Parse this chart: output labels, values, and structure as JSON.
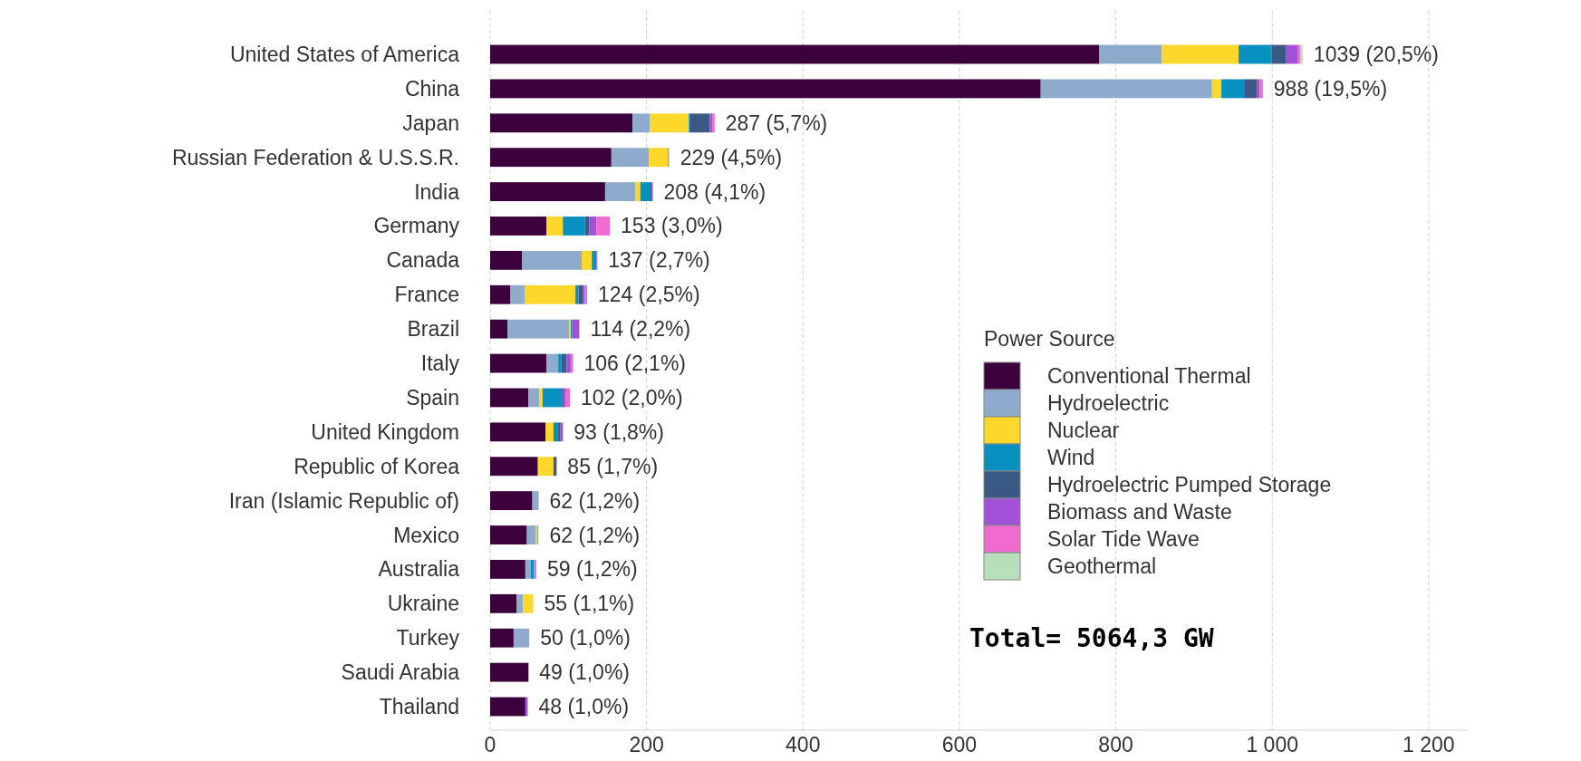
{
  "chart_data": {
    "type": "bar",
    "orientation": "horizontal",
    "stacked": true,
    "categories": [
      "United States of America",
      "China",
      "Japan",
      "Russian Federation & U.S.S.R.",
      "India",
      "Germany",
      "Canada",
      "France",
      "Brazil",
      "Italy",
      "Spain",
      "United Kingdom",
      "Republic of Korea",
      "Iran (Islamic Republic of)",
      "Mexico",
      "Australia",
      "Ukraine",
      "Turkey",
      "Saudi Arabia",
      "Thailand"
    ],
    "legend_title": "Power Source",
    "legend": "bottom right",
    "grid": "x",
    "xlim": [
      0,
      1250
    ],
    "xticks": [
      0,
      200,
      400,
      600,
      800,
      {
        "value": 1000,
        "label": "1 000"
      },
      {
        "value": 1200,
        "label": "1 200"
      }
    ],
    "series": [
      {
        "name": "Conventional Thermal",
        "color": "#3c003c",
        "values": [
          779,
          704,
          182,
          155,
          147,
          72,
          41,
          26,
          22,
          72,
          49,
          71,
          61,
          54,
          47,
          45,
          34,
          30,
          49,
          45
        ]
      },
      {
        "name": "Hydroelectric",
        "color": "#8eaacc",
        "values": [
          80,
          219,
          22,
          48,
          39,
          0,
          76,
          18,
          79,
          15,
          14,
          0,
          0,
          8,
          11,
          7,
          8,
          20,
          0,
          0
        ]
      },
      {
        "name": "Nuclear",
        "color": "#fdd82b",
        "values": [
          98,
          12,
          50,
          24,
          6,
          21,
          13,
          65,
          2,
          0,
          4,
          10,
          20,
          0,
          2,
          0,
          13,
          0,
          0,
          0
        ]
      },
      {
        "name": "Wind",
        "color": "#0891c0",
        "values": [
          42,
          30,
          2,
          0,
          13,
          28,
          6,
          4,
          2,
          4,
          25,
          6,
          0,
          0,
          1,
          4,
          0,
          0,
          0,
          0
        ]
      },
      {
        "name": "Hydroelectric Pumped Storage",
        "color": "#3a5a85",
        "values": [
          19,
          15,
          25,
          0,
          2,
          6,
          0,
          6,
          0,
          7,
          2,
          3,
          4,
          0,
          0,
          0,
          0,
          0,
          0,
          0
        ]
      },
      {
        "name": "Biomass and Waste",
        "color": "#a350d8",
        "values": [
          15,
          4,
          3,
          1,
          1,
          9,
          1,
          2,
          9,
          5,
          3,
          3,
          0,
          0,
          0,
          0,
          0,
          0,
          0,
          3
        ]
      },
      {
        "name": "Solar Tide Wave",
        "color": "#f06ad0",
        "values": [
          3,
          4,
          3,
          0,
          0,
          17,
          0,
          3,
          0,
          3,
          5,
          0,
          0,
          0,
          0,
          3,
          0,
          0,
          0,
          0
        ]
      },
      {
        "name": "Geothermal",
        "color": "#b7dfb9",
        "values": [
          3,
          0,
          0,
          1,
          0,
          0,
          0,
          0,
          0,
          0,
          0,
          0,
          0,
          0,
          1,
          0,
          0,
          0,
          0,
          0
        ]
      }
    ],
    "totals": [
      "1039 (20,5%)",
      "988 (19,5%)",
      "287 (5,7%)",
      "229 (4,5%)",
      "208 (4,1%)",
      "153 (3,0%)",
      "137 (2,7%)",
      "124 (2,5%)",
      "114 (2,2%)",
      "106 (2,1%)",
      "102 (2,0%)",
      "93 (1,8%)",
      "85 (1,7%)",
      "62 (1,2%)",
      "62 (1,2%)",
      "59 (1,2%)",
      "55 (1,1%)",
      "50 (1,0%)",
      "49 (1,0%)",
      "48 (1,0%)"
    ],
    "annotations": [
      "Total= 5064,3 GW"
    ]
  }
}
